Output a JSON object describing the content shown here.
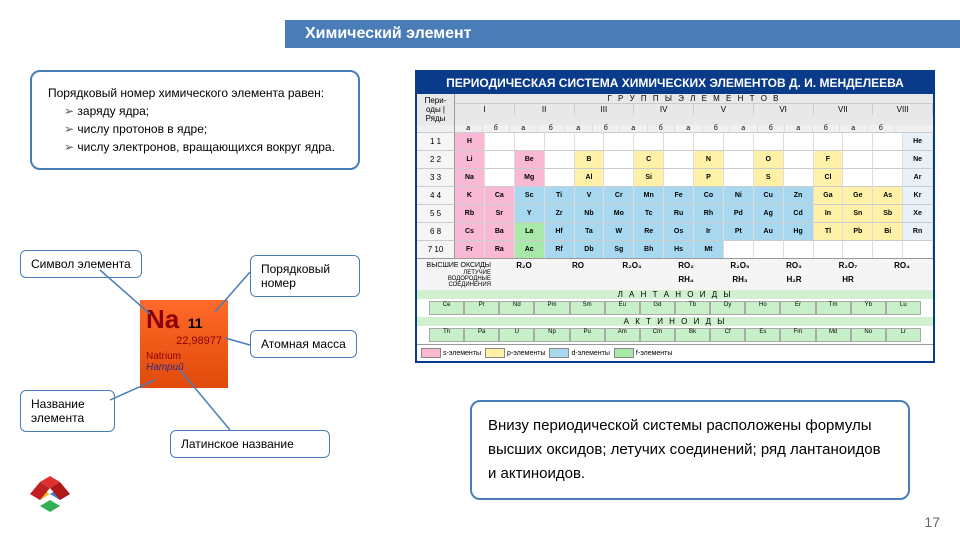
{
  "title": "Химический элемент",
  "page_number": "17",
  "colors": {
    "accent": "#4a7db8",
    "ptable_header": "#0a3a8a",
    "element_card_bg": "#ff6a2a",
    "s_block": "#f9b8d4",
    "p_block": "#fff2a8",
    "d_block": "#a8d8f0",
    "f_block": "#a8e8a8"
  },
  "info_box": {
    "lead": "Порядковый номер химического элемента равен:",
    "items": [
      "заряду ядра;",
      "числу протонов в ядре;",
      "числу электронов, вращающихся вокруг ядра."
    ]
  },
  "labels": {
    "symbol": "Символ элемента",
    "number": "Порядковый номер",
    "mass": "Атомная масса",
    "name": "Название элемента",
    "latin": "Латинское название"
  },
  "element": {
    "symbol": "Na",
    "number": "11",
    "mass": "22,98977",
    "latin": "Natrium",
    "name": "Натрий"
  },
  "bottom_note": "Внизу периодической системы расположены формулы высших оксидов; летучих соединений; ряд лантаноидов и актиноидов.",
  "ptable": {
    "title": "ПЕРИОДИЧЕСКАЯ СИСТЕМА ХИМИЧЕСКИХ ЭЛЕМЕНТОВ Д. И. МЕНДЕЛЕЕВА",
    "groups_label": "Г Р У П П Ы   Э Л Е М Е Н Т О В",
    "corner_top": "Пери-оды",
    "corner_side": "Ряды",
    "roman": [
      "I",
      "II",
      "III",
      "IV",
      "V",
      "VI",
      "VII",
      "VIII"
    ],
    "ab": [
      "а",
      "б"
    ],
    "rows": [
      {
        "p": "1",
        "r": "1",
        "cells": [
          [
            "H",
            "s"
          ],
          [
            "",
            "e"
          ],
          [
            "",
            "e"
          ],
          [
            "",
            "e"
          ],
          [
            "",
            "e"
          ],
          [
            "",
            "e"
          ],
          [
            "",
            "e"
          ],
          [
            "",
            "e"
          ],
          [
            "",
            "e"
          ],
          [
            "",
            "e"
          ],
          [
            "",
            "e"
          ],
          [
            "",
            "e"
          ],
          [
            "",
            "e"
          ],
          [
            "",
            "e"
          ],
          [
            "",
            "e"
          ],
          [
            "He",
            "n"
          ]
        ]
      },
      {
        "p": "2",
        "r": "2",
        "cells": [
          [
            "Li",
            "s"
          ],
          [
            "",
            "e"
          ],
          [
            "Be",
            "s"
          ],
          [
            "",
            "e"
          ],
          [
            "B",
            "p"
          ],
          [
            "",
            "e"
          ],
          [
            "C",
            "p"
          ],
          [
            "",
            "e"
          ],
          [
            "N",
            "p"
          ],
          [
            "",
            "e"
          ],
          [
            "O",
            "p"
          ],
          [
            "",
            "e"
          ],
          [
            "F",
            "p"
          ],
          [
            "",
            "e"
          ],
          [
            "",
            "e"
          ],
          [
            "Ne",
            "n"
          ]
        ]
      },
      {
        "p": "3",
        "r": "3",
        "cells": [
          [
            "Na",
            "s"
          ],
          [
            "",
            "e"
          ],
          [
            "Mg",
            "s"
          ],
          [
            "",
            "e"
          ],
          [
            "Al",
            "p"
          ],
          [
            "",
            "e"
          ],
          [
            "Si",
            "p"
          ],
          [
            "",
            "e"
          ],
          [
            "P",
            "p"
          ],
          [
            "",
            "e"
          ],
          [
            "S",
            "p"
          ],
          [
            "",
            "e"
          ],
          [
            "Cl",
            "p"
          ],
          [
            "",
            "e"
          ],
          [
            "",
            "e"
          ],
          [
            "Ar",
            "n"
          ]
        ]
      },
      {
        "p": "4",
        "r": "4",
        "cells": [
          [
            "K",
            "s"
          ],
          [
            "Ca",
            "s"
          ],
          [
            "Sc",
            "d"
          ],
          [
            "Ti",
            "d"
          ],
          [
            "V",
            "d"
          ],
          [
            "Cr",
            "d"
          ],
          [
            "Mn",
            "d"
          ],
          [
            "Fe",
            "d"
          ],
          [
            "Co",
            "d"
          ],
          [
            "Ni",
            "d"
          ],
          [
            "Cu",
            "d"
          ],
          [
            "Zn",
            "d"
          ],
          [
            "Ga",
            "p"
          ],
          [
            "Ge",
            "p"
          ],
          [
            "As",
            "p"
          ],
          [
            "Kr",
            "n"
          ]
        ]
      },
      {
        "p": "5",
        "r": "5",
        "cells": [
          [
            "Rb",
            "s"
          ],
          [
            "Sr",
            "s"
          ],
          [
            "Y",
            "d"
          ],
          [
            "Zr",
            "d"
          ],
          [
            "Nb",
            "d"
          ],
          [
            "Mo",
            "d"
          ],
          [
            "Tc",
            "d"
          ],
          [
            "Ru",
            "d"
          ],
          [
            "Rh",
            "d"
          ],
          [
            "Pd",
            "d"
          ],
          [
            "Ag",
            "d"
          ],
          [
            "Cd",
            "d"
          ],
          [
            "In",
            "p"
          ],
          [
            "Sn",
            "p"
          ],
          [
            "Sb",
            "p"
          ],
          [
            "Xe",
            "n"
          ]
        ]
      },
      {
        "p": "6",
        "r": "8",
        "cells": [
          [
            "Cs",
            "s"
          ],
          [
            "Ba",
            "s"
          ],
          [
            "La",
            "f"
          ],
          [
            "Hf",
            "d"
          ],
          [
            "Ta",
            "d"
          ],
          [
            "W",
            "d"
          ],
          [
            "Re",
            "d"
          ],
          [
            "Os",
            "d"
          ],
          [
            "Ir",
            "d"
          ],
          [
            "Pt",
            "d"
          ],
          [
            "Au",
            "d"
          ],
          [
            "Hg",
            "d"
          ],
          [
            "Tl",
            "p"
          ],
          [
            "Pb",
            "p"
          ],
          [
            "Bi",
            "p"
          ],
          [
            "Rn",
            "n"
          ]
        ]
      },
      {
        "p": "7",
        "r": "10",
        "cells": [
          [
            "Fr",
            "s"
          ],
          [
            "Ra",
            "s"
          ],
          [
            "Ac",
            "f"
          ],
          [
            "Rf",
            "d"
          ],
          [
            "Db",
            "d"
          ],
          [
            "Sg",
            "d"
          ],
          [
            "Bh",
            "d"
          ],
          [
            "Hs",
            "d"
          ],
          [
            "Mt",
            "d"
          ],
          [
            "",
            "e"
          ],
          [
            "",
            "e"
          ],
          [
            "",
            "e"
          ],
          [
            "",
            "e"
          ],
          [
            "",
            "e"
          ],
          [
            "",
            "e"
          ],
          [
            "",
            "e"
          ]
        ]
      }
    ],
    "oxides_label": "ВЫСШИЕ ОКСИДЫ",
    "oxides": [
      "R₂O",
      "RO",
      "R₂O₃",
      "RO₂",
      "R₂O₅",
      "RO₃",
      "R₂O₇",
      "RO₄"
    ],
    "hydrides_label": "ЛЕТУЧИЕ ВОДОРОДНЫЕ СОЕДИНЕНИЯ",
    "hydrides": [
      "",
      "",
      "",
      "RH₄",
      "RH₃",
      "H₂R",
      "HR",
      ""
    ],
    "lanthanoids_label": "Л А Н Т А Н О И Д Ы",
    "lanthanoids": [
      "Ce",
      "Pr",
      "Nd",
      "Pm",
      "Sm",
      "Eu",
      "Gd",
      "Tb",
      "Dy",
      "Ho",
      "Er",
      "Tm",
      "Yb",
      "Lu"
    ],
    "actinoids_label": "А К Т И Н О И Д Ы",
    "actinoids": [
      "Th",
      "Pa",
      "U",
      "Np",
      "Pu",
      "Am",
      "Cm",
      "Bk",
      "Cf",
      "Es",
      "Fm",
      "Md",
      "No",
      "Lr"
    ],
    "legend": [
      {
        "c": "#f9b8d4",
        "t": "s-элементы"
      },
      {
        "c": "#fff2a8",
        "t": "p-элементы"
      },
      {
        "c": "#a8d8f0",
        "t": "d-элементы"
      },
      {
        "c": "#a8e8a8",
        "t": "f-элементы"
      }
    ]
  }
}
